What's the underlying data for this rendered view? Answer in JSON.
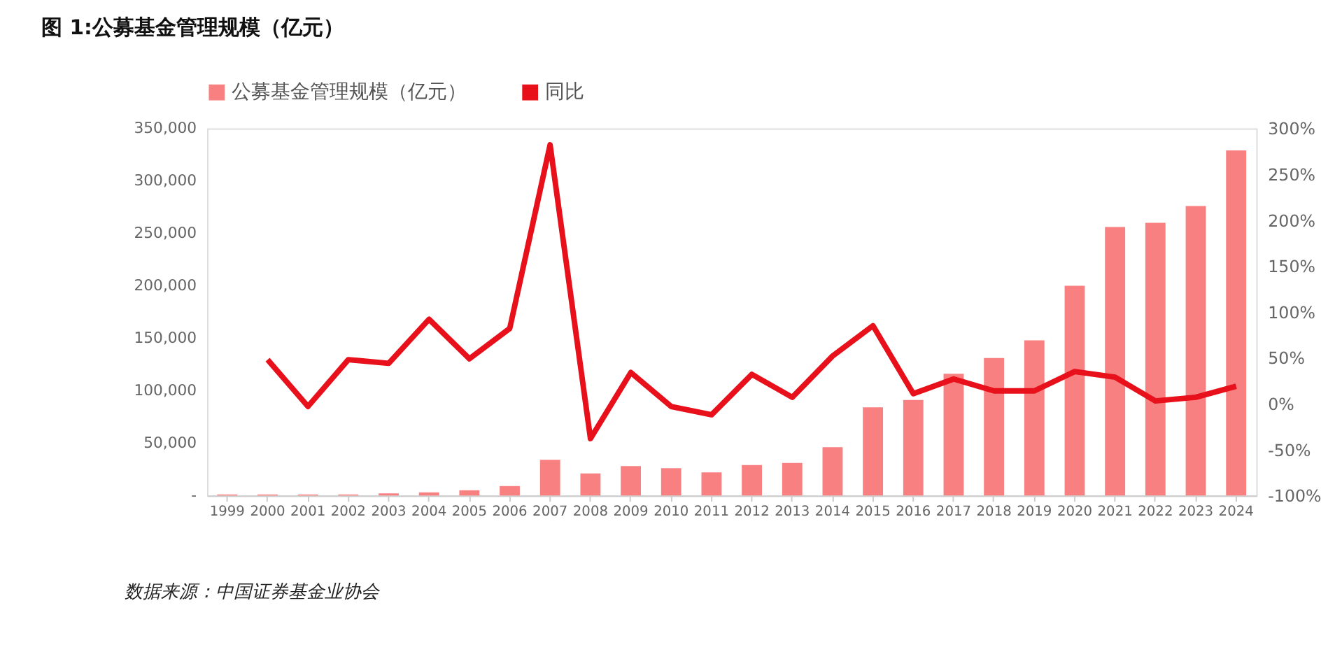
{
  "chart_data": {
    "type": "bar",
    "title": "图 1:公募基金管理规模（亿元）",
    "annotations": [
      "数据来源：中国证券基金业协会"
    ],
    "categories": [
      "1999",
      "2000",
      "2001",
      "2002",
      "2003",
      "2004",
      "2005",
      "2006",
      "2007",
      "2008",
      "2009",
      "2010",
      "2011",
      "2012",
      "2013",
      "2014",
      "2015",
      "2016",
      "2017",
      "2018",
      "2019",
      "2020",
      "2021",
      "2022",
      "2023",
      "2024"
    ],
    "series": [
      {
        "name": "公募基金管理规模（亿元）",
        "color": "#f98080",
        "values": [
          1000,
          1000,
          1000,
          1000,
          2000,
          3000,
          5000,
          9000,
          34000,
          21000,
          28000,
          26000,
          22000,
          29000,
          31000,
          46000,
          84000,
          91000,
          116000,
          131000,
          148000,
          200000,
          256000,
          260000,
          276000,
          329000
        ]
      },
      {
        "name": "同比",
        "type": "line",
        "axis": "y2",
        "color": "#e8101a",
        "values": [
          null,
          48,
          -3,
          48,
          44,
          92,
          49,
          82,
          282,
          -38,
          34,
          -3,
          -12,
          32,
          7,
          52,
          85,
          11,
          27,
          14,
          14,
          35,
          29,
          3,
          7,
          19
        ]
      }
    ],
    "ylim": [
      0,
      350000
    ],
    "yticks": [
      {
        "value": 0,
        "label": "-"
      },
      {
        "value": 50000,
        "label": "50,000"
      },
      {
        "value": 100000,
        "label": "100,000"
      },
      {
        "value": 150000,
        "label": "150,000"
      },
      {
        "value": 200000,
        "label": "200,000"
      },
      {
        "value": 250000,
        "label": "250,000"
      },
      {
        "value": 300000,
        "label": "300,000"
      },
      {
        "value": 350000,
        "label": "350,000"
      }
    ],
    "y2lim": [
      -100,
      300
    ],
    "y2ticks": [
      {
        "value": -100,
        "label": "-100%"
      },
      {
        "value": -50,
        "label": "-50%"
      },
      {
        "value": 0,
        "label": "0%"
      },
      {
        "value": 50,
        "label": "50%"
      },
      {
        "value": 100,
        "label": "100%"
      },
      {
        "value": 150,
        "label": "150%"
      },
      {
        "value": 200,
        "label": "200%"
      },
      {
        "value": 250,
        "label": "250%"
      },
      {
        "value": 300,
        "label": "300%"
      }
    ],
    "grid": false,
    "legend": "top",
    "marker": "none",
    "line_style": "solid"
  }
}
